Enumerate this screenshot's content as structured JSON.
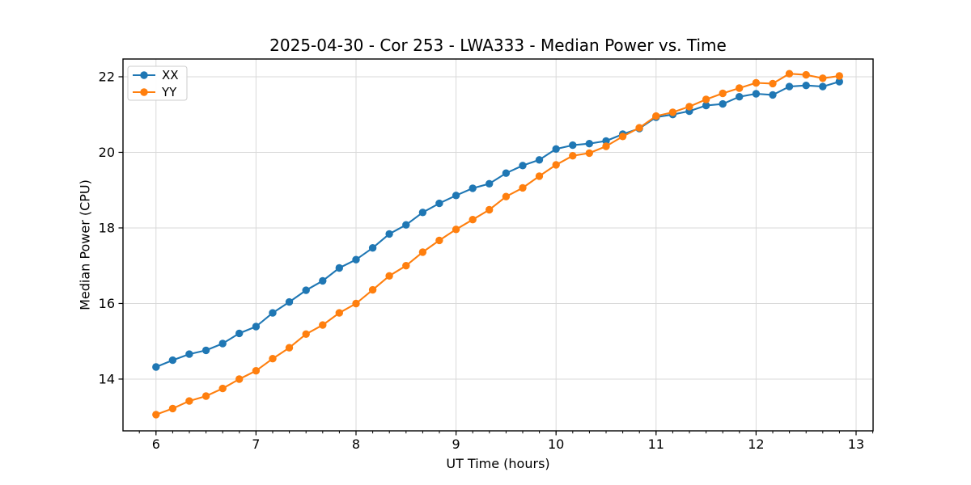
{
  "chart_data": {
    "type": "line",
    "title": "2025-04-30 - Cor 253 - LWA333 - Median Power vs. Time",
    "xlabel": "UT Time (hours)",
    "ylabel": "Median Power (CPU)",
    "xlim": [
      5.67,
      13.17
    ],
    "ylim": [
      12.63,
      22.47
    ],
    "x_major_ticks": [
      6,
      7,
      8,
      9,
      10,
      11,
      12,
      13
    ],
    "x_minor_tick_step": 0.16667,
    "y_major_ticks": [
      14,
      16,
      18,
      20,
      22
    ],
    "grid": true,
    "legend_position": "upper-left",
    "x": [
      6.0,
      6.167,
      6.333,
      6.5,
      6.667,
      6.833,
      7.0,
      7.167,
      7.333,
      7.5,
      7.667,
      7.833,
      8.0,
      8.167,
      8.333,
      8.5,
      8.667,
      8.833,
      9.0,
      9.167,
      9.333,
      9.5,
      9.667,
      9.833,
      10.0,
      10.167,
      10.333,
      10.5,
      10.667,
      10.833,
      11.0,
      11.167,
      11.333,
      11.5,
      11.667,
      11.833,
      12.0,
      12.167,
      12.333,
      12.5,
      12.667,
      12.833
    ],
    "series": [
      {
        "name": "XX",
        "color": "#1f77b4",
        "values": [
          14.32,
          14.5,
          14.66,
          14.76,
          14.94,
          15.21,
          15.39,
          15.75,
          16.04,
          16.35,
          16.6,
          16.94,
          17.16,
          17.47,
          17.84,
          18.08,
          18.41,
          18.65,
          18.86,
          19.05,
          19.17,
          19.45,
          19.65,
          19.8,
          20.09,
          20.19,
          20.23,
          20.3,
          20.48,
          20.63,
          20.93,
          21.0,
          21.09,
          21.24,
          21.28,
          21.47,
          21.55,
          21.52,
          21.74,
          21.77,
          21.74,
          21.87
        ]
      },
      {
        "name": "YY",
        "color": "#ff7f0e",
        "values": [
          13.06,
          13.22,
          13.42,
          13.55,
          13.75,
          14.0,
          14.22,
          14.54,
          14.83,
          15.19,
          15.43,
          15.75,
          16.0,
          16.36,
          16.73,
          17.0,
          17.36,
          17.67,
          17.96,
          18.22,
          18.48,
          18.83,
          19.06,
          19.37,
          19.67,
          19.91,
          19.98,
          20.16,
          20.42,
          20.65,
          20.96,
          21.06,
          21.21,
          21.4,
          21.56,
          21.7,
          21.84,
          21.82,
          22.08,
          22.05,
          21.96,
          22.02
        ]
      }
    ],
    "style": {
      "background": "#ffffff",
      "axis_color": "#000000",
      "grid_color": "#d9d9d9",
      "text_color": "#000000",
      "legend_border": "#cccccc"
    }
  }
}
